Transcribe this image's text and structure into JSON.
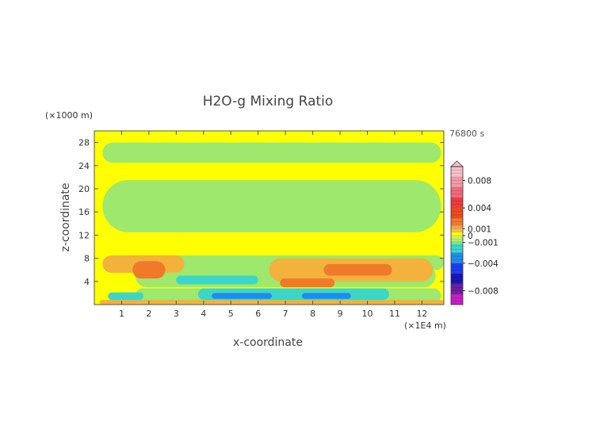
{
  "chart_data": {
    "type": "heatmap",
    "title": "H2O-g Mixing Ratio",
    "xlabel": "x-coordinate",
    "ylabel": "z-coordinate",
    "x_unit": "(×1E4 m)",
    "y_unit": "(×1000 m)",
    "time_label": "76800 s",
    "xlim": [
      0,
      12.8
    ],
    "ylim": [
      0,
      30
    ],
    "x_ticks": [
      1,
      2,
      3,
      4,
      5,
      6,
      7,
      8,
      9,
      10,
      11,
      12
    ],
    "y_ticks": [
      4,
      8,
      12,
      16,
      20,
      24,
      28
    ],
    "colorbar": {
      "range": [
        -0.01,
        0.01
      ],
      "tick_values": [
        0.008,
        0.004,
        0.001,
        0,
        -0.001,
        -0.004,
        -0.008
      ],
      "tick_labels": [
        "0.008",
        "0.004",
        "0.001",
        "0",
        "−0.001",
        "−0.004",
        "−0.008"
      ],
      "stops": [
        {
          "value": 0.01,
          "color": "#f4bfc8"
        },
        {
          "value": 0.0085,
          "color": "#f29aa5"
        },
        {
          "value": 0.007,
          "color": "#f06a78"
        },
        {
          "value": 0.0055,
          "color": "#ee3b3b"
        },
        {
          "value": 0.004,
          "color": "#ee4a1c"
        },
        {
          "value": 0.0025,
          "color": "#f07a2a"
        },
        {
          "value": 0.0015,
          "color": "#f0a04a"
        },
        {
          "value": 0.001,
          "color": "#f2c050"
        },
        {
          "value": 0.0005,
          "color": "#ffff00"
        },
        {
          "value": 0.0,
          "color": "#c8f064"
        },
        {
          "value": -0.0007,
          "color": "#96e87a"
        },
        {
          "value": -0.0012,
          "color": "#3cd6c8"
        },
        {
          "value": -0.0025,
          "color": "#1e8cf0"
        },
        {
          "value": -0.004,
          "color": "#1e3cf0"
        },
        {
          "value": -0.0055,
          "color": "#1a16b4"
        },
        {
          "value": -0.007,
          "color": "#6e1ea0"
        },
        {
          "value": -0.0085,
          "color": "#c81ec8"
        },
        {
          "value": -0.01,
          "color": "#f01ea0"
        }
      ]
    },
    "field_colors": {
      "background": "#ffff00",
      "slightly_negative": "#9ee86e",
      "light_positive": "#f2b23c",
      "orange": "#f07a2a",
      "cyan": "#3cd6c8",
      "blue": "#1e8cf0"
    },
    "regions": [
      {
        "level": "slightly_negative",
        "x": 0.3,
        "y": 24.5,
        "w": 12.4,
        "h": 3.5
      },
      {
        "level": "slightly_negative",
        "x": 0.3,
        "y": 12.5,
        "w": 12.4,
        "h": 9.0
      },
      {
        "level": "slightly_negative",
        "x": 2.0,
        "y": 6.0,
        "w": 10.8,
        "h": 2.5
      },
      {
        "level": "slightly_negative",
        "x": 1.5,
        "y": 3.0,
        "w": 11.0,
        "h": 4.0
      },
      {
        "level": "slightly_negative",
        "x": 1.5,
        "y": 0.3,
        "w": 11.2,
        "h": 2.5
      },
      {
        "level": "light_positive",
        "x": 0.3,
        "y": 5.5,
        "w": 3.0,
        "h": 3.0
      },
      {
        "level": "light_positive",
        "x": 6.4,
        "y": 4.0,
        "w": 6.0,
        "h": 4.0
      },
      {
        "level": "light_positive",
        "x": 0.2,
        "y": 0.0,
        "w": 12.6,
        "h": 0.8
      },
      {
        "level": "orange",
        "x": 1.4,
        "y": 4.5,
        "w": 1.2,
        "h": 3.0
      },
      {
        "level": "orange",
        "x": 8.4,
        "y": 5.0,
        "w": 2.5,
        "h": 2.0
      },
      {
        "level": "orange",
        "x": 6.8,
        "y": 3.0,
        "w": 2.0,
        "h": 1.5
      },
      {
        "level": "cyan",
        "x": 3.0,
        "y": 3.5,
        "w": 3.0,
        "h": 1.5
      },
      {
        "level": "cyan",
        "x": 3.8,
        "y": 0.8,
        "w": 7.0,
        "h": 2.0
      },
      {
        "level": "cyan",
        "x": 0.5,
        "y": 0.8,
        "w": 1.3,
        "h": 1.3
      },
      {
        "level": "blue",
        "x": 4.3,
        "y": 1.0,
        "w": 2.2,
        "h": 1.0
      },
      {
        "level": "blue",
        "x": 7.6,
        "y": 1.0,
        "w": 1.8,
        "h": 1.0
      }
    ]
  }
}
